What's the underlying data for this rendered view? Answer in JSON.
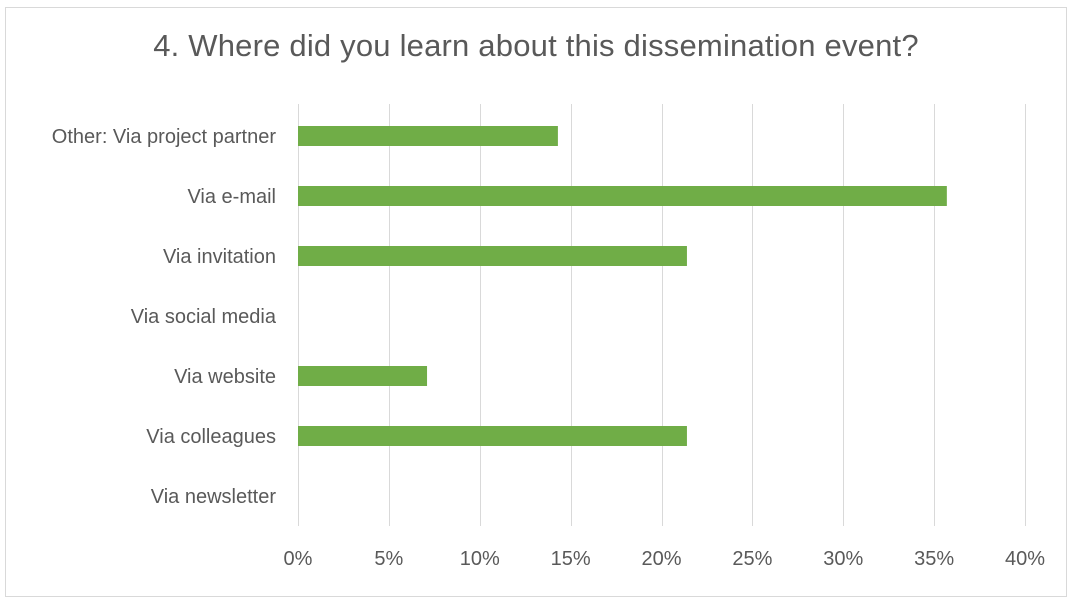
{
  "chart_data": {
    "type": "bar",
    "orientation": "horizontal",
    "title": "4. Where did you learn about this dissemination event?",
    "categories": [
      "Other: Via project partner",
      "Via e-mail",
      "Via invitation",
      "Via social media",
      "Via website",
      "Via colleagues",
      "Via newsletter"
    ],
    "values": [
      14.3,
      35.7,
      21.4,
      0,
      7.1,
      21.4,
      0
    ],
    "value_unit": "%",
    "xlim": [
      0,
      40
    ],
    "xticks": [
      "0%",
      "5%",
      "10%",
      "15%",
      "20%",
      "25%",
      "30%",
      "35%",
      "40%"
    ],
    "xlabel": "",
    "ylabel": "",
    "grid": "vertical",
    "legend": "none",
    "bar_color": "#70ad47"
  }
}
